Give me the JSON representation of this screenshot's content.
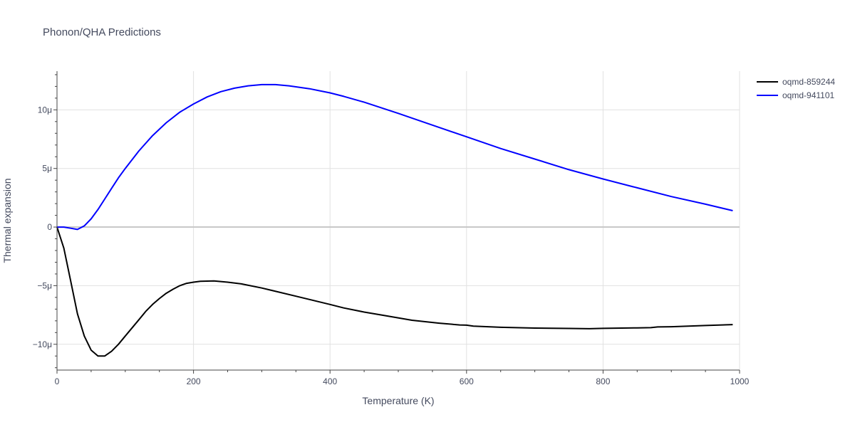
{
  "chart_data": {
    "type": "line",
    "title": "Phonon/QHA Predictions",
    "xlabel": "Temperature (K)",
    "ylabel": "Thermal expansion",
    "xlim": [
      0,
      1000
    ],
    "ylim": [
      -12.2,
      13.3
    ],
    "x_ticks": [
      0,
      200,
      400,
      600,
      800,
      1000
    ],
    "x_tick_labels": [
      "0",
      "200",
      "400",
      "600",
      "800",
      "1000"
    ],
    "y_ticks": [
      -10,
      -5,
      0,
      5,
      10
    ],
    "y_tick_labels": [
      "−10μ",
      "−5μ",
      "0",
      "5μ",
      "10μ"
    ],
    "legend_position": "top-right",
    "series": [
      {
        "name": "oqmd-859244",
        "color": "#000000",
        "x": [
          0,
          10,
          20,
          30,
          40,
          50,
          60,
          70,
          80,
          90,
          100,
          110,
          120,
          130,
          140,
          150,
          160,
          170,
          180,
          190,
          200,
          210,
          230,
          250,
          270,
          300,
          350,
          400,
          420,
          450,
          480,
          520,
          560,
          590,
          600,
          610,
          650,
          700,
          750,
          780,
          800,
          850,
          870,
          880,
          900,
          950,
          990
        ],
        "y": [
          0,
          -1.8,
          -4.6,
          -7.4,
          -9.3,
          -10.5,
          -11.0,
          -11.0,
          -10.6,
          -10.0,
          -9.3,
          -8.6,
          -7.9,
          -7.2,
          -6.6,
          -6.1,
          -5.65,
          -5.3,
          -5.0,
          -4.8,
          -4.7,
          -4.62,
          -4.6,
          -4.7,
          -4.85,
          -5.2,
          -5.9,
          -6.6,
          -6.9,
          -7.25,
          -7.55,
          -7.95,
          -8.2,
          -8.35,
          -8.37,
          -8.45,
          -8.55,
          -8.62,
          -8.65,
          -8.67,
          -8.64,
          -8.6,
          -8.58,
          -8.52,
          -8.5,
          -8.4,
          -8.32
        ]
      },
      {
        "name": "oqmd-941101",
        "color": "#0000ff",
        "x": [
          0,
          10,
          20,
          30,
          40,
          50,
          60,
          70,
          80,
          90,
          100,
          120,
          140,
          160,
          180,
          200,
          220,
          240,
          260,
          280,
          300,
          320,
          340,
          370,
          400,
          420,
          450,
          500,
          550,
          600,
          650,
          700,
          750,
          800,
          850,
          900,
          950,
          990
        ],
        "y": [
          0,
          0,
          -0.1,
          -0.2,
          0.1,
          0.7,
          1.5,
          2.4,
          3.3,
          4.2,
          5.0,
          6.5,
          7.8,
          8.9,
          9.8,
          10.5,
          11.1,
          11.55,
          11.85,
          12.05,
          12.15,
          12.15,
          12.05,
          11.8,
          11.45,
          11.15,
          10.65,
          9.7,
          8.7,
          7.7,
          6.7,
          5.8,
          4.9,
          4.1,
          3.35,
          2.6,
          1.95,
          1.4
        ]
      }
    ]
  }
}
